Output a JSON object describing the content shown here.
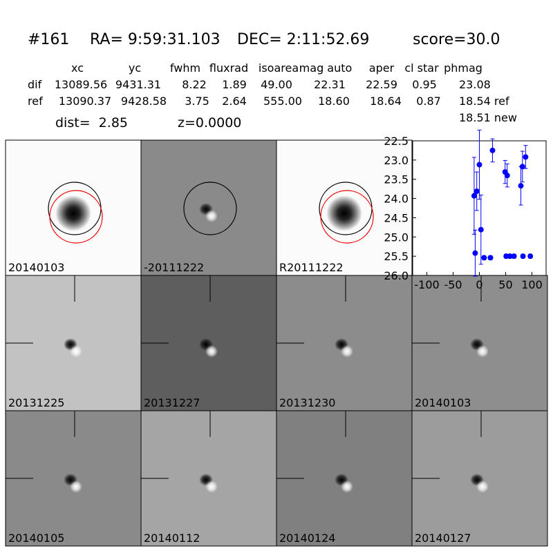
{
  "header": {
    "id": "#161",
    "ra": "RA= 9:59:31.103",
    "dec": "DEC= 2:11:52.69",
    "score": "score=30.0"
  },
  "table": {
    "columns": [
      "xc",
      "yc",
      "fwhm",
      "fluxrad",
      "isoarea",
      "mag auto",
      "aper",
      "cl star",
      "phmag"
    ],
    "rows": [
      {
        "label": "dif",
        "cells": [
          "13089.56",
          "9431.31",
          "8.22",
          "1.89",
          "49.00",
          "22.31",
          "22.59",
          "0.95",
          "23.08"
        ]
      },
      {
        "label": "ref",
        "cells": [
          "13090.37",
          "9428.58",
          "3.75",
          "2.64",
          "555.00",
          "18.60",
          "18.64",
          "0.87",
          "18.54 ref"
        ]
      }
    ],
    "extra": "18.51 new"
  },
  "dist": "dist=  2.85",
  "z": "z=0.0000",
  "stamps": [
    {
      "label": "20140103"
    },
    {
      "label": "-20111222"
    },
    {
      "label": "R20111222"
    },
    {
      "label": "20131225"
    },
    {
      "label": "20131227"
    },
    {
      "label": "20131230"
    },
    {
      "label": "20140103",
      "color": "#ff0000"
    },
    {
      "label": "20140105"
    },
    {
      "label": "20140112"
    },
    {
      "label": "20140124"
    },
    {
      "label": "20140127"
    }
  ],
  "chart_data": {
    "type": "scatter",
    "x": [
      -10,
      -8,
      -5,
      0,
      3,
      9,
      21,
      25,
      49,
      53,
      51,
      58,
      66,
      79,
      82,
      88,
      83,
      97
    ],
    "series": [
      {
        "color": "#0000ff",
        "values": [
          23.93,
          25.42,
          23.81,
          23.12,
          24.81,
          25.54,
          25.54,
          22.75,
          23.31,
          23.4,
          25.5,
          25.5,
          25.5,
          23.67,
          23.17,
          22.92,
          25.5,
          25.5
        ],
        "errors": [
          1.0,
          0.6,
          0.5,
          0.9,
          0.9,
          0.05,
          0.05,
          0.3,
          0.3,
          0.3,
          0.05,
          0.05,
          0.05,
          0.5,
          0.4,
          0.3,
          0.05,
          0.05
        ]
      }
    ],
    "xlim": [
      -127,
      127
    ],
    "ylim": [
      26.0,
      22.5
    ],
    "xticks": [
      -100,
      -50,
      0,
      50,
      100
    ],
    "yticks": [
      22.5,
      {
        "value": 23,
        "label": "23.0"
      },
      23.5,
      {
        "value": 24,
        "label": "24.0"
      },
      24.5,
      {
        "value": 25,
        "label": "25.0"
      },
      25.5,
      {
        "value": 26,
        "label": "26.0"
      }
    ]
  }
}
